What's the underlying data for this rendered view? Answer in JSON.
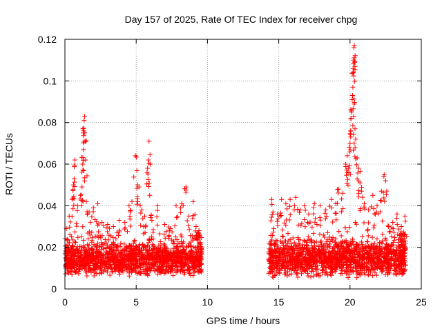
{
  "chart_data": {
    "type": "scatter",
    "title": "Day 157 of 2025, Rate Of TEC Index for receiver chpg",
    "xlabel": "GPS time / hours",
    "ylabel": "ROTI / TECUs",
    "xlim": [
      0,
      25
    ],
    "ylim": [
      0,
      0.12
    ],
    "xticks": [
      0,
      5,
      10,
      15,
      20,
      25
    ],
    "xtick_labels": [
      "0",
      "5",
      "10",
      "15",
      "20",
      "25"
    ],
    "yticks": [
      0,
      0.02,
      0.04,
      0.06,
      0.08,
      0.1,
      0.12
    ],
    "ytick_labels": [
      "0",
      "0.02",
      "0.04",
      "0.06",
      "0.08",
      "0.1",
      "0.12"
    ],
    "grid": true,
    "marker": "+",
    "marker_color": "#ff0000",
    "series": [
      {
        "name": "ROTI",
        "segments": [
          {
            "x_start": 0.0,
            "x_end": 9.6,
            "baseline_min": 0.006,
            "baseline_max": 0.022
          },
          {
            "x_start": 14.3,
            "x_end": 23.9,
            "baseline_min": 0.005,
            "baseline_max": 0.024
          }
        ],
        "points": [
          {
            "x": 0.1,
            "y": 0.029
          },
          {
            "x": 0.3,
            "y": 0.035
          },
          {
            "x": 0.5,
            "y": 0.043
          },
          {
            "x": 0.6,
            "y": 0.05
          },
          {
            "x": 0.65,
            "y": 0.053
          },
          {
            "x": 0.7,
            "y": 0.062
          },
          {
            "x": 0.9,
            "y": 0.04
          },
          {
            "x": 1.1,
            "y": 0.045
          },
          {
            "x": 1.2,
            "y": 0.049
          },
          {
            "x": 1.25,
            "y": 0.06
          },
          {
            "x": 1.3,
            "y": 0.067
          },
          {
            "x": 1.32,
            "y": 0.076
          },
          {
            "x": 1.35,
            "y": 0.081
          },
          {
            "x": 1.38,
            "y": 0.083
          },
          {
            "x": 1.45,
            "y": 0.062
          },
          {
            "x": 1.5,
            "y": 0.042
          },
          {
            "x": 1.7,
            "y": 0.037
          },
          {
            "x": 2.0,
            "y": 0.039
          },
          {
            "x": 2.3,
            "y": 0.041
          },
          {
            "x": 2.6,
            "y": 0.032
          },
          {
            "x": 3.0,
            "y": 0.031
          },
          {
            "x": 3.4,
            "y": 0.03
          },
          {
            "x": 3.8,
            "y": 0.033
          },
          {
            "x": 4.2,
            "y": 0.032
          },
          {
            "x": 4.5,
            "y": 0.04
          },
          {
            "x": 4.7,
            "y": 0.042
          },
          {
            "x": 4.95,
            "y": 0.064
          },
          {
            "x": 5.1,
            "y": 0.05
          },
          {
            "x": 5.2,
            "y": 0.049
          },
          {
            "x": 5.4,
            "y": 0.038
          },
          {
            "x": 5.6,
            "y": 0.035
          },
          {
            "x": 5.8,
            "y": 0.058
          },
          {
            "x": 5.85,
            "y": 0.062
          },
          {
            "x": 5.9,
            "y": 0.071
          },
          {
            "x": 5.95,
            "y": 0.045
          },
          {
            "x": 6.1,
            "y": 0.033
          },
          {
            "x": 6.5,
            "y": 0.04
          },
          {
            "x": 7.0,
            "y": 0.031
          },
          {
            "x": 7.4,
            "y": 0.029
          },
          {
            "x": 7.8,
            "y": 0.04
          },
          {
            "x": 8.2,
            "y": 0.041
          },
          {
            "x": 8.5,
            "y": 0.049
          },
          {
            "x": 8.7,
            "y": 0.035
          },
          {
            "x": 9.0,
            "y": 0.042
          },
          {
            "x": 9.2,
            "y": 0.03
          },
          {
            "x": 9.4,
            "y": 0.028
          },
          {
            "x": 14.5,
            "y": 0.043
          },
          {
            "x": 14.6,
            "y": 0.037
          },
          {
            "x": 14.9,
            "y": 0.036
          },
          {
            "x": 15.2,
            "y": 0.043
          },
          {
            "x": 15.5,
            "y": 0.041
          },
          {
            "x": 15.8,
            "y": 0.043
          },
          {
            "x": 16.2,
            "y": 0.044
          },
          {
            "x": 16.5,
            "y": 0.038
          },
          {
            "x": 16.8,
            "y": 0.04
          },
          {
            "x": 17.1,
            "y": 0.036
          },
          {
            "x": 17.5,
            "y": 0.041
          },
          {
            "x": 17.9,
            "y": 0.04
          },
          {
            "x": 18.3,
            "y": 0.038
          },
          {
            "x": 18.7,
            "y": 0.043
          },
          {
            "x": 19.0,
            "y": 0.041
          },
          {
            "x": 19.2,
            "y": 0.048
          },
          {
            "x": 19.5,
            "y": 0.046
          },
          {
            "x": 19.7,
            "y": 0.06
          },
          {
            "x": 19.8,
            "y": 0.064
          },
          {
            "x": 19.9,
            "y": 0.058
          },
          {
            "x": 20.0,
            "y": 0.07
          },
          {
            "x": 20.05,
            "y": 0.076
          },
          {
            "x": 20.1,
            "y": 0.085
          },
          {
            "x": 20.15,
            "y": 0.091
          },
          {
            "x": 20.18,
            "y": 0.093
          },
          {
            "x": 20.2,
            "y": 0.097
          },
          {
            "x": 20.22,
            "y": 0.106
          },
          {
            "x": 20.25,
            "y": 0.11
          },
          {
            "x": 20.27,
            "y": 0.116
          },
          {
            "x": 20.3,
            "y": 0.117
          },
          {
            "x": 20.35,
            "y": 0.077
          },
          {
            "x": 20.4,
            "y": 0.072
          },
          {
            "x": 20.5,
            "y": 0.063
          },
          {
            "x": 20.6,
            "y": 0.058
          },
          {
            "x": 20.7,
            "y": 0.051
          },
          {
            "x": 20.8,
            "y": 0.047
          },
          {
            "x": 21.0,
            "y": 0.041
          },
          {
            "x": 21.3,
            "y": 0.038
          },
          {
            "x": 21.6,
            "y": 0.045
          },
          {
            "x": 21.9,
            "y": 0.04
          },
          {
            "x": 22.2,
            "y": 0.047
          },
          {
            "x": 22.4,
            "y": 0.055
          },
          {
            "x": 22.5,
            "y": 0.052
          },
          {
            "x": 22.7,
            "y": 0.03
          },
          {
            "x": 23.0,
            "y": 0.032
          },
          {
            "x": 23.3,
            "y": 0.036
          },
          {
            "x": 23.6,
            "y": 0.03
          },
          {
            "x": 23.85,
            "y": 0.035
          }
        ]
      }
    ]
  }
}
